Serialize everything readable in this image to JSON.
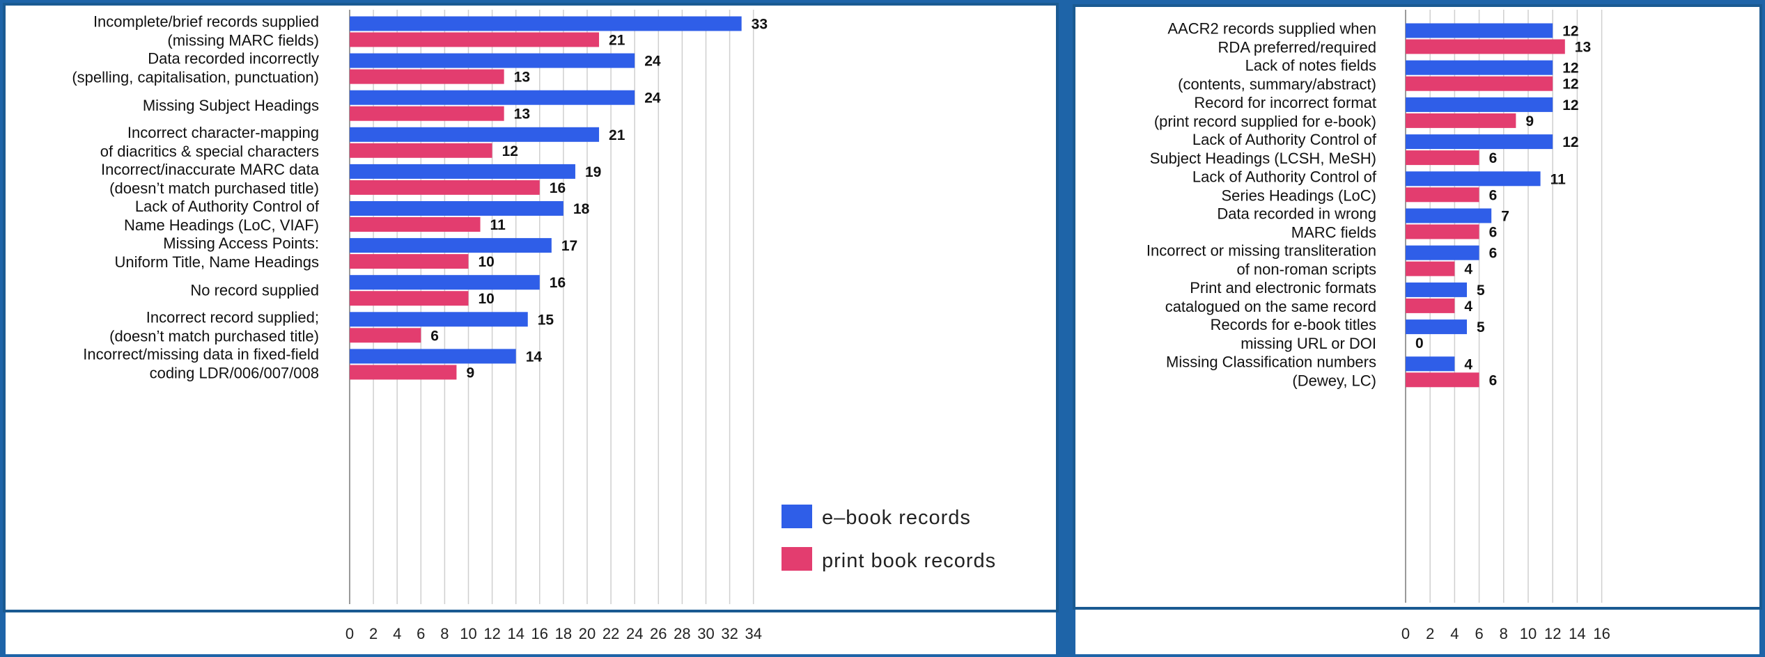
{
  "colors": {
    "ebook": "#2f5ee8",
    "print": "#e33d6f",
    "frame": "#1a5a92",
    "background": "#1e64a8"
  },
  "legend": {
    "ebook_label": "e–book records",
    "print_label": "print book records"
  },
  "chart_data": [
    {
      "type": "bar",
      "orientation": "horizontal",
      "categories": [
        [
          "Incomplete/brief records supplied",
          "(missing MARC fields)"
        ],
        [
          "Data recorded incorrectly",
          "(spelling, capitalisation, punctuation)"
        ],
        [
          "Missing Subject Headings"
        ],
        [
          "Incorrect character-mapping",
          "of diacritics & special characters"
        ],
        [
          "Incorrect/inaccurate MARC data",
          "(doesn’t match purchased title)"
        ],
        [
          "Lack of Authority Control of",
          "Name Headings (LoC, VIAF)"
        ],
        [
          "Missing Access Points:",
          "Uniform Title, Name Headings"
        ],
        [
          "No record supplied"
        ],
        [
          "Incorrect record supplied;",
          "(doesn’t match purchased title)"
        ],
        [
          "Incorrect/missing data in fixed-field",
          "coding LDR/006/007/008"
        ]
      ],
      "series": [
        {
          "name": "e–book records",
          "values": [
            33,
            24,
            24,
            21,
            19,
            18,
            17,
            16,
            15,
            14
          ]
        },
        {
          "name": "print book records",
          "values": [
            21,
            13,
            13,
            12,
            16,
            11,
            10,
            10,
            6,
            9
          ]
        }
      ],
      "xlim": [
        0,
        35
      ],
      "xticks": [
        0,
        2,
        4,
        6,
        8,
        10,
        12,
        14,
        16,
        18,
        20,
        22,
        24,
        26,
        28,
        30,
        32,
        34
      ],
      "grid": true,
      "legend_position": "bottom-right"
    },
    {
      "type": "bar",
      "orientation": "horizontal",
      "categories": [
        [
          "AACR2 records supplied when",
          "RDA preferred/required"
        ],
        [
          "Lack of notes fields",
          "(contents, summary/abstract)"
        ],
        [
          "Record for incorrect format",
          "(print record supplied for e-book)"
        ],
        [
          "Lack of Authority Control of",
          "Subject Headings (LCSH, MeSH)"
        ],
        [
          "Lack of Authority Control of",
          "Series Headings (LoC)"
        ],
        [
          "Data recorded in wrong",
          "MARC fields"
        ],
        [
          "Incorrect or missing transliteration",
          "of non-roman scripts"
        ],
        [
          "Print and electronic formats",
          "catalogued on the same record"
        ],
        [
          "Records for e-book titles",
          "missing URL or DOI"
        ],
        [
          "Missing Classification numbers",
          "(Dewey, LC)"
        ]
      ],
      "series": [
        {
          "name": "e–book records",
          "values": [
            12,
            12,
            12,
            12,
            11,
            7,
            6,
            5,
            5,
            4
          ]
        },
        {
          "name": "print book records",
          "values": [
            13,
            12,
            9,
            6,
            6,
            6,
            4,
            4,
            0,
            6
          ]
        }
      ],
      "xlim": [
        0,
        17
      ],
      "xticks": [
        0,
        2,
        4,
        6,
        8,
        10,
        12,
        14,
        16
      ],
      "grid": true
    }
  ]
}
